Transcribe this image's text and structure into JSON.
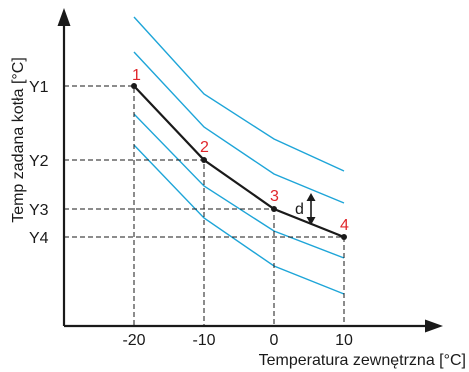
{
  "axes": {
    "x_title": "Temperatura zewnętrzna [°C]",
    "y_title": "Temp zadana kotła [°C]",
    "x_ticks": [
      "-20",
      "-10",
      "0",
      "10"
    ],
    "y_ticks": [
      "Y1",
      "Y2",
      "Y3",
      "Y4"
    ]
  },
  "points": [
    {
      "label": "1",
      "x": -20,
      "y": "Y1"
    },
    {
      "label": "2",
      "x": -10,
      "y": "Y2"
    },
    {
      "label": "3",
      "x": 0,
      "y": "Y3"
    },
    {
      "label": "4",
      "x": 10,
      "y": "Y4"
    }
  ],
  "offset_label": "d",
  "colors": {
    "main_curve": "#1a1a1a",
    "parallel_curves": "#1ea5d8",
    "point_labels": "#e0262b"
  }
}
